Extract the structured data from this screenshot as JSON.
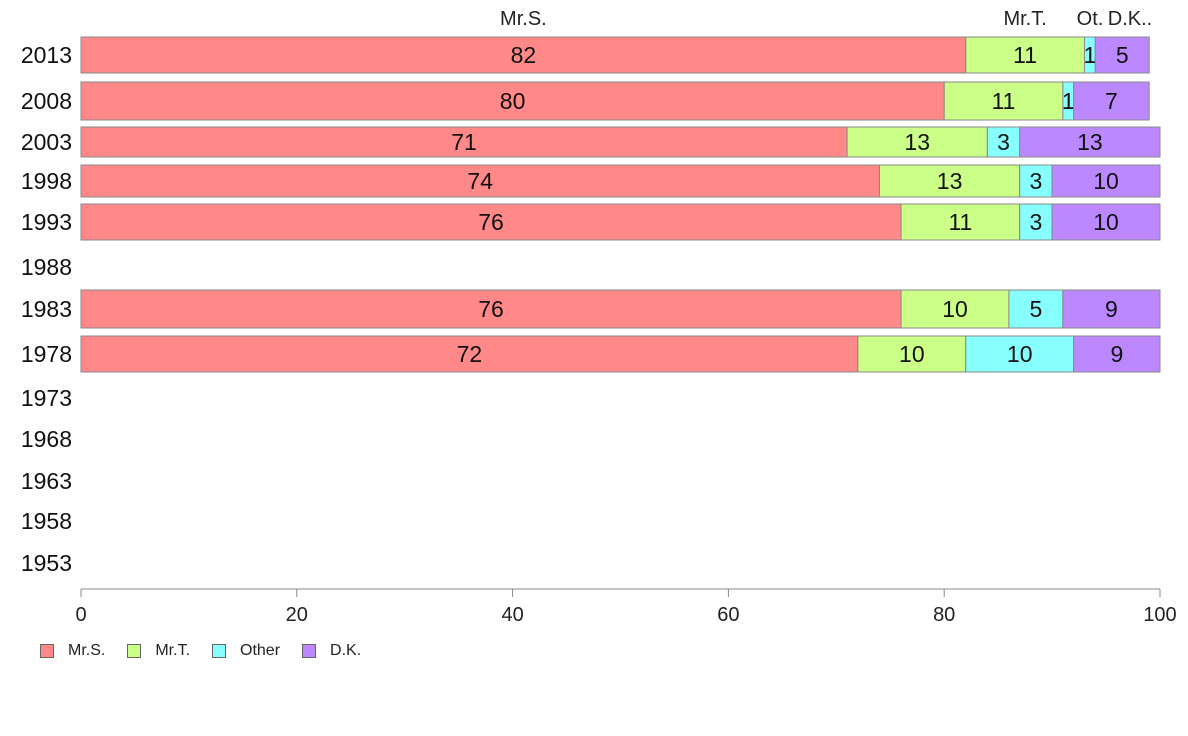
{
  "chart_data": {
    "type": "bar",
    "orientation": "horizontal",
    "stacked": true,
    "categories": [
      "2013",
      "2008",
      "2003",
      "1998",
      "1993",
      "1988",
      "1983",
      "1978",
      "1973",
      "1968",
      "1963",
      "1958",
      "1953"
    ],
    "series": [
      {
        "name": "Mr.S.",
        "color": "#ff8888",
        "values": [
          82,
          80,
          71,
          74,
          76,
          null,
          76,
          72,
          null,
          null,
          null,
          null,
          null
        ]
      },
      {
        "name": "Mr.T.",
        "color": "#ccff88",
        "values": [
          11,
          11,
          13,
          13,
          11,
          null,
          10,
          10,
          null,
          null,
          null,
          null,
          null
        ]
      },
      {
        "name": "Other",
        "color": "#88ffff",
        "values": [
          1,
          1,
          3,
          3,
          3,
          null,
          5,
          10,
          null,
          null,
          null,
          null,
          null
        ]
      },
      {
        "name": "D.K.",
        "color": "#bb88ff",
        "values": [
          5,
          7,
          13,
          10,
          10,
          null,
          9,
          9,
          null,
          null,
          null,
          null,
          null
        ]
      }
    ],
    "top_labels": [
      "Mr.S.",
      "Mr.T.",
      "Ot.",
      "D.K.."
    ],
    "xlim": [
      0,
      100
    ],
    "xticks": [
      0,
      20,
      40,
      60,
      80,
      100
    ],
    "grid": false,
    "legend_position": "bottom-left",
    "title": "",
    "xlabel": "",
    "ylabel": ""
  }
}
